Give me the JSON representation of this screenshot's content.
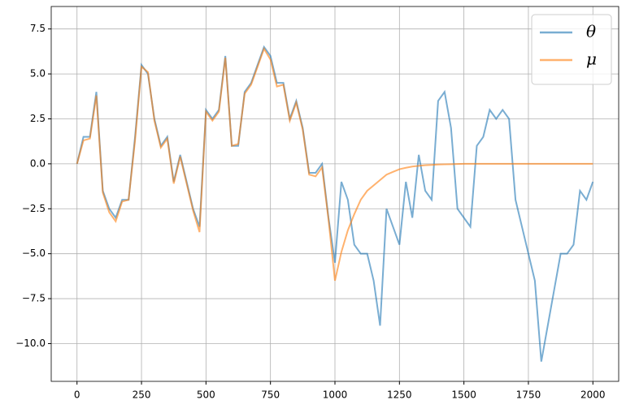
{
  "chart_data": {
    "type": "line",
    "x": [
      0,
      25,
      50,
      75,
      100,
      125,
      150,
      175,
      200,
      225,
      250,
      275,
      300,
      325,
      350,
      375,
      400,
      425,
      450,
      475,
      500,
      525,
      550,
      575,
      600,
      625,
      650,
      675,
      700,
      725,
      750,
      775,
      800,
      825,
      850,
      875,
      900,
      925,
      950,
      975,
      1000,
      1025,
      1050,
      1075,
      1100,
      1125,
      1150,
      1175,
      1200,
      1225,
      1250,
      1275,
      1300,
      1325,
      1350,
      1375,
      1400,
      1425,
      1450,
      1475,
      1500,
      1525,
      1550,
      1575,
      1600,
      1625,
      1650,
      1675,
      1700,
      1725,
      1750,
      1775,
      1800,
      1825,
      1850,
      1875,
      1900,
      1925,
      1950,
      1975,
      2000
    ],
    "series": [
      {
        "name": "θ",
        "color": "#1f77b4",
        "values": [
          0,
          1.5,
          1.5,
          4,
          -1.5,
          -2.5,
          -3,
          -2,
          -2,
          1.5,
          5.5,
          5,
          2.5,
          1,
          1.5,
          -1,
          0.5,
          -1,
          -2.5,
          -3.5,
          3,
          2.5,
          3,
          6,
          1,
          1,
          4,
          4.5,
          5.5,
          6.5,
          6,
          4.5,
          4.5,
          2.5,
          3.5,
          2,
          -0.5,
          -0.5,
          0,
          -3,
          -5.5,
          -1,
          -2,
          -4.5,
          -5,
          -5,
          -6.5,
          -9,
          -2.5,
          -3.5,
          -4.5,
          -1,
          -3,
          0.5,
          -1.5,
          -2,
          3.5,
          4,
          2,
          -2.5,
          -3,
          -3.5,
          1,
          1.5,
          3,
          2.5,
          3,
          2.5,
          -2,
          -3.5,
          -5,
          -6.5,
          -11,
          -9,
          -7,
          -5,
          -5,
          -4.5,
          -1.5,
          -2,
          -1
        ]
      },
      {
        "name": "μ",
        "color": "#ff7f0e",
        "values": [
          0,
          1.3,
          1.4,
          3.8,
          -1.6,
          -2.7,
          -3.2,
          -2.1,
          -2,
          1.3,
          5.4,
          5.1,
          2.4,
          0.9,
          1.4,
          -1.1,
          0.4,
          -1.1,
          -2.6,
          -3.8,
          2.9,
          2.4,
          2.9,
          5.9,
          1,
          1.1,
          3.9,
          4.4,
          5.4,
          6.4,
          5.8,
          4.3,
          4.4,
          2.4,
          3.4,
          1.9,
          -0.6,
          -0.7,
          -0.2,
          -3.1,
          -6.5,
          -4.9,
          -3.7,
          -2.8,
          -2,
          -1.5,
          -1.2,
          -0.9,
          -0.6,
          -0.45,
          -0.3,
          -0.22,
          -0.15,
          -0.11,
          -0.08,
          -0.06,
          -0.04,
          -0.03,
          -0.02,
          -0.01,
          0,
          0,
          0,
          0,
          0,
          0,
          0,
          0,
          0,
          0,
          0,
          0,
          0,
          0,
          0,
          0,
          0,
          0,
          0,
          0,
          0
        ]
      }
    ],
    "xlim": [
      -100,
      2100
    ],
    "ylim": [
      -12.1,
      8.75
    ],
    "xticks": [
      0,
      250,
      500,
      750,
      1000,
      1250,
      1500,
      1750,
      2000
    ],
    "yticks": [
      {
        "value": -10,
        "label": "−10.0"
      },
      {
        "value": -7.5,
        "label": "−7.5"
      },
      {
        "value": -5,
        "label": "−5.0"
      },
      {
        "value": -2.5,
        "label": "−2.5"
      },
      {
        "value": 0,
        "label": "0.0"
      },
      {
        "value": 2.5,
        "label": "2.5"
      },
      {
        "value": 5,
        "label": "5.0"
      },
      7.5
    ],
    "grid": true,
    "legend": "upper right"
  }
}
